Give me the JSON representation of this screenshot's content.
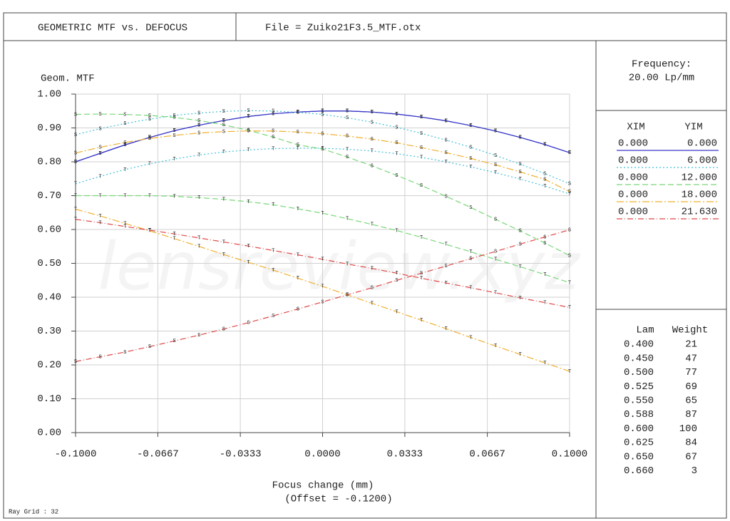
{
  "header": {
    "title": "GEOMETRIC MTF vs. DEFOCUS",
    "file": "File = Zuiko21F3.5_MTF.otx"
  },
  "frequency": {
    "label": "Frequency:",
    "value": "20.00  Lp/mm"
  },
  "fields": {
    "headers": [
      "XIM",
      "YIM"
    ],
    "rows": [
      {
        "xim": "0.000",
        "yim": "0.000",
        "color": "#3838c8",
        "dash": "none"
      },
      {
        "xim": "0.000",
        "yim": "6.000",
        "color": "#40c0d8",
        "dash": "2,3"
      },
      {
        "xim": "0.000",
        "yim": "12.000",
        "color": "#78d878",
        "dash": "8,4"
      },
      {
        "xim": "0.000",
        "yim": "18.000",
        "color": "#f0b030",
        "dash": "10,3,2,3"
      },
      {
        "xim": "0.000",
        "yim": "21.630",
        "color": "#e04848",
        "dash": "8,3,1,3"
      }
    ]
  },
  "wavelengths": {
    "headers": [
      "Lam",
      "Weight"
    ],
    "rows": [
      [
        "0.400",
        21
      ],
      [
        "0.450",
        47
      ],
      [
        "0.500",
        77
      ],
      [
        "0.525",
        69
      ],
      [
        "0.550",
        65
      ],
      [
        "0.588",
        87
      ],
      [
        "0.600",
        100
      ],
      [
        "0.625",
        84
      ],
      [
        "0.650",
        67
      ],
      [
        "0.660",
        3
      ]
    ]
  },
  "footer": "Ray Grid : 32",
  "watermark": "lensreview.xyz",
  "chart_data": {
    "type": "line",
    "y_label": "Geom. MTF",
    "x_label": "Focus change (mm)",
    "x_sublabel": "(Offset = -0.1200)",
    "x": [
      -0.1,
      -0.09,
      -0.08,
      -0.07,
      -0.06,
      -0.05,
      -0.04,
      -0.03,
      -0.02,
      -0.01,
      0,
      0.01,
      0.02,
      0.03,
      0.04,
      0.05,
      0.06,
      0.07,
      0.08,
      0.09,
      0.1
    ],
    "xlim": [
      -0.1,
      0.1
    ],
    "xticks": [
      {
        "value": -0.1,
        "label": "-0.1000"
      },
      -0.0667,
      -0.0333,
      {
        "value": 0,
        "label": "0.0000"
      },
      0.0333,
      0.0667,
      {
        "value": 0.1,
        "label": "0.1000"
      }
    ],
    "ylim": [
      0,
      1
    ],
    "yticks": [
      {
        "value": 0,
        "label": "0.00"
      },
      {
        "value": 0.1,
        "label": "0.10"
      },
      {
        "value": 0.2,
        "label": "0.20"
      },
      {
        "value": 0.3,
        "label": "0.30"
      },
      {
        "value": 0.4,
        "label": "0.40"
      },
      {
        "value": 0.5,
        "label": "0.50"
      },
      {
        "value": 0.6,
        "label": "0.60"
      },
      {
        "value": 0.7,
        "label": "0.70"
      },
      {
        "value": 0.8,
        "label": "0.80"
      },
      {
        "value": 0.9,
        "label": "0.90"
      },
      {
        "value": 1,
        "label": "1.00"
      }
    ],
    "grid": true,
    "series": [
      {
        "marker": "T",
        "color": "#3838c8",
        "dash": "none",
        "values": [
          0.8,
          0.825,
          0.85,
          0.872,
          0.892,
          0.908,
          0.922,
          0.934,
          0.942,
          0.947,
          0.95,
          0.95,
          0.947,
          0.941,
          0.932,
          0.921,
          0.907,
          0.891,
          0.872,
          0.851,
          0.827
        ]
      },
      {
        "marker": "S",
        "color": "#3838c8",
        "dash": "none",
        "values": [
          0.8,
          0.825,
          0.85,
          0.872,
          0.892,
          0.908,
          0.922,
          0.934,
          0.942,
          0.947,
          0.95,
          0.95,
          0.947,
          0.941,
          0.932,
          0.921,
          0.907,
          0.891,
          0.872,
          0.851,
          0.827
        ]
      },
      {
        "marker": "T",
        "color": "#40c0d8",
        "dash": "2,3",
        "values": [
          0.735,
          0.757,
          0.777,
          0.794,
          0.808,
          0.82,
          0.829,
          0.835,
          0.839,
          0.84,
          0.84,
          0.837,
          0.832,
          0.824,
          0.813,
          0.8,
          0.785,
          0.768,
          0.749,
          0.728,
          0.705
        ]
      },
      {
        "marker": "S",
        "color": "#40c0d8",
        "dash": "2,3",
        "values": [
          0.88,
          0.898,
          0.913,
          0.926,
          0.937,
          0.944,
          0.949,
          0.951,
          0.95,
          0.946,
          0.94,
          0.93,
          0.917,
          0.902,
          0.884,
          0.864,
          0.843,
          0.819,
          0.793,
          0.765,
          0.735
        ]
      },
      {
        "marker": "T",
        "color": "#78d878",
        "dash": "8,4",
        "values": [
          0.7,
          0.7,
          0.7,
          0.7,
          0.698,
          0.694,
          0.689,
          0.682,
          0.673,
          0.661,
          0.648,
          0.632,
          0.615,
          0.597,
          0.577,
          0.556,
          0.534,
          0.512,
          0.49,
          0.467,
          0.443
        ]
      },
      {
        "marker": "S",
        "color": "#78d878",
        "dash": "8,4",
        "values": [
          0.94,
          0.941,
          0.94,
          0.937,
          0.931,
          0.922,
          0.909,
          0.893,
          0.873,
          0.85,
          0.838,
          0.814,
          0.788,
          0.76,
          0.73,
          0.698,
          0.665,
          0.63,
          0.596,
          0.56,
          0.523
        ]
      },
      {
        "marker": "T",
        "color": "#f0b030",
        "dash": "10,3,2,3",
        "values": [
          0.66,
          0.64,
          0.618,
          0.596,
          0.573,
          0.55,
          0.526,
          0.503,
          0.48,
          0.456,
          0.432,
          0.407,
          0.382,
          0.357,
          0.332,
          0.307,
          0.281,
          0.256,
          0.231,
          0.206,
          0.181
        ]
      },
      {
        "marker": "S",
        "color": "#f0b030",
        "dash": "10,3,2,3",
        "values": [
          0.826,
          0.843,
          0.857,
          0.869,
          0.878,
          0.885,
          0.889,
          0.891,
          0.891,
          0.888,
          0.883,
          0.876,
          0.867,
          0.856,
          0.842,
          0.827,
          0.81,
          0.791,
          0.77,
          0.748,
          0.712
        ]
      },
      {
        "marker": "T",
        "color": "#e04848",
        "dash": "8,3,1,3",
        "values": [
          0.63,
          0.62,
          0.609,
          0.598,
          0.587,
          0.575,
          0.563,
          0.551,
          0.538,
          0.525,
          0.512,
          0.498,
          0.485,
          0.471,
          0.456,
          0.442,
          0.428,
          0.413,
          0.398,
          0.384,
          0.37
        ]
      },
      {
        "marker": "S",
        "color": "#e04848",
        "dash": "8,3,1,3",
        "values": [
          0.21,
          0.224,
          0.238,
          0.254,
          0.271,
          0.288,
          0.306,
          0.325,
          0.345,
          0.365,
          0.386,
          0.407,
          0.428,
          0.45,
          0.471,
          0.492,
          0.514,
          0.535,
          0.557,
          0.578,
          0.599
        ]
      }
    ]
  }
}
